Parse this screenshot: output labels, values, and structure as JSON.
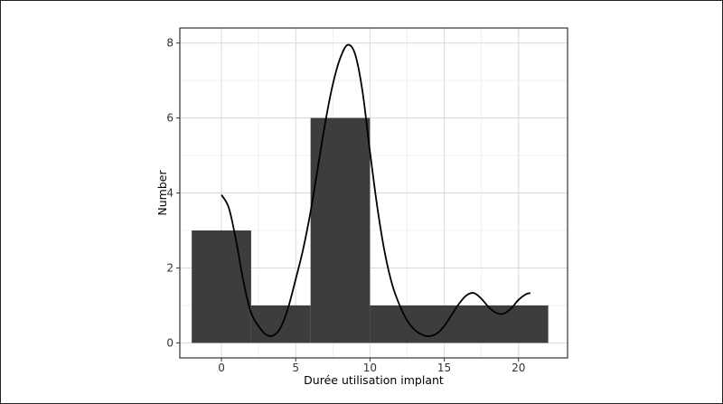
{
  "chart_data": {
    "type": "bar",
    "xlabel": "Durée utilisation implant",
    "ylabel": "Number",
    "xlim": [
      -2.8,
      23.3
    ],
    "ylim": [
      -0.4,
      8.4
    ],
    "x_ticks": [
      0,
      5,
      10,
      15,
      20
    ],
    "y_ticks": [
      0,
      2,
      4,
      6,
      8
    ],
    "grid": true,
    "bins": [
      {
        "from": -2,
        "to": 2,
        "value": 3
      },
      {
        "from": 2,
        "to": 6,
        "value": 1
      },
      {
        "from": 6,
        "to": 10,
        "value": 6
      },
      {
        "from": 10,
        "to": 22,
        "value": 1
      }
    ],
    "density_curve": {
      "x": [
        0,
        0.5,
        1,
        1.5,
        2,
        2.5,
        3,
        3.5,
        4,
        4.5,
        5,
        5.5,
        6,
        6.5,
        7,
        7.5,
        8,
        8.5,
        9,
        9.5,
        10,
        10.5,
        11,
        11.5,
        12,
        12.5,
        13,
        13.5,
        14,
        14.5,
        15,
        15.5,
        16,
        16.5,
        17,
        17.5,
        18,
        18.5,
        19,
        19.5,
        20,
        20.5,
        20.8
      ],
      "y": [
        3.95,
        3.6,
        2.7,
        1.6,
        0.8,
        0.45,
        0.22,
        0.2,
        0.42,
        0.95,
        1.7,
        2.5,
        3.5,
        4.7,
        5.9,
        6.9,
        7.6,
        7.95,
        7.7,
        6.7,
        5.1,
        3.6,
        2.4,
        1.55,
        1.0,
        0.6,
        0.35,
        0.22,
        0.18,
        0.25,
        0.45,
        0.75,
        1.05,
        1.27,
        1.33,
        1.18,
        0.95,
        0.8,
        0.78,
        0.92,
        1.15,
        1.3,
        1.33
      ]
    }
  }
}
